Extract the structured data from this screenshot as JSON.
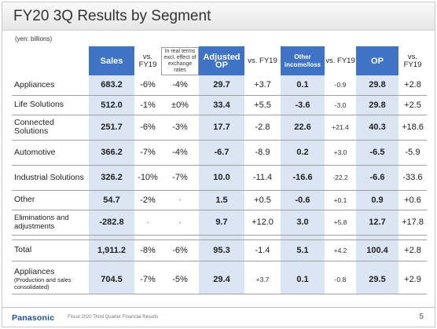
{
  "title": "FY20 3Q Results by Segment",
  "unit": "(yen: billions)",
  "columns": {
    "sales": "Sales",
    "vs1": "vs. FY19",
    "real_terms": "In real terms excl. effect of exchange rates",
    "adj_op": "Adjusted OP",
    "vs2": "vs. FY19",
    "other_income": "Other income/loss",
    "vs3": "vs. FY19",
    "op": "OP",
    "vs4": "vs. FY19"
  },
  "rows": [
    {
      "label": "Appliances",
      "sub": "",
      "sales": "683.2",
      "vs1": "-6%",
      "real": "-4%",
      "adj": "29.7",
      "vs2": "+3.7",
      "oth": "0.1",
      "vs3": "-0.9",
      "op": "29.8",
      "vs4": "+2.8"
    },
    {
      "label": "Life Solutions",
      "sub": "",
      "sales": "512.0",
      "vs1": "-1%",
      "real": "±0%",
      "adj": "33.4",
      "vs2": "+5.5",
      "oth": "-3.6",
      "vs3": "-3.0",
      "op": "29.8",
      "vs4": "+2.5"
    },
    {
      "label": "Connected Solutions",
      "sub": "",
      "sales": "251.7",
      "vs1": "-6%",
      "real": "-3%",
      "adj": "17.7",
      "vs2": "-2.8",
      "oth": "22.6",
      "vs3": "+21.4",
      "op": "40.3",
      "vs4": "+18.6"
    },
    {
      "label": "Automotive",
      "sub": "",
      "sales": "366.2",
      "vs1": "-7%",
      "real": "-4%",
      "adj": "-6.7",
      "vs2": "-8.9",
      "oth": "0.2",
      "vs3": "+3.0",
      "op": "-6.5",
      "vs4": "-5.9"
    },
    {
      "label": "Industrial Solutions",
      "sub": "",
      "sales": "326.2",
      "vs1": "-10%",
      "real": "-7%",
      "adj": "10.0",
      "vs2": "-11.4",
      "oth": "-16.6",
      "vs3": "-22.2",
      "op": "-6.6",
      "vs4": "-33.6"
    },
    {
      "label": "Other",
      "sub": "",
      "sales": "54.7",
      "vs1": "-2%",
      "real": "-",
      "adj": "1.5",
      "vs2": "+0.5",
      "oth": "-0.6",
      "vs3": "+0.1",
      "op": "0.9",
      "vs4": "+0.6"
    },
    {
      "label": "Eliminations and adjustments",
      "sub": "",
      "sales": "-282.8",
      "vs1": "-",
      "real": "-",
      "adj": "9.7",
      "vs2": "+12.0",
      "oth": "3.0",
      "vs3": "+5.8",
      "op": "12.7",
      "vs4": "+17.8"
    }
  ],
  "total": {
    "label": "Total",
    "sales": "1,911.2",
    "vs1": "-8%",
    "real": "-6%",
    "adj": "95.3",
    "vs2": "-1.4",
    "oth": "5.1",
    "vs3": "+4.2",
    "op": "100.4",
    "vs4": "+2.8"
  },
  "last": {
    "label": "Appliances",
    "sub": "(Production and sales consolidated)",
    "sales": "704.5",
    "vs1": "-7%",
    "real": "-5%",
    "adj": "29.4",
    "vs2": "+3.7",
    "oth": "0.1",
    "vs3": "-0.8",
    "op": "29.5",
    "vs4": "+2.9"
  },
  "footer": {
    "logo": "Panasonic",
    "text": "Fiscal 2020 Third Quarter Financial Results",
    "page": "5"
  },
  "colors": {
    "header_blue": "#3f73c6",
    "shade_blue": "#dbe5f4",
    "logo_blue": "#1b4fa0"
  }
}
